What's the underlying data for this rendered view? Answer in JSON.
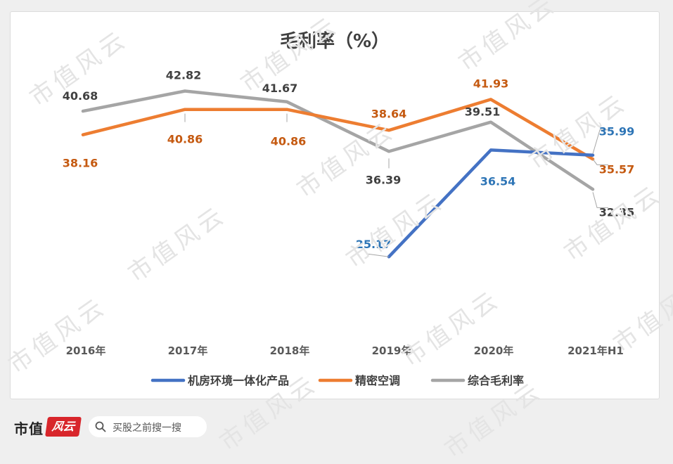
{
  "watermark_text": "市值风云",
  "footer": {
    "brand_main": "市值",
    "brand_badge": "风云",
    "search_placeholder": "买股之前搜一搜"
  },
  "colors": {
    "series_blue": "#4472c4",
    "series_orange": "#ed7d31",
    "series_gray": "#a5a5a5",
    "label_blue": "#2e75b6",
    "label_orange": "#c55a11",
    "label_gray": "#404040"
  },
  "chart_data": {
    "type": "line",
    "title": "毛利率（%）",
    "xlabel": "",
    "ylabel": "",
    "ylim": [
      18,
      46
    ],
    "grid": false,
    "legend_position": "bottom",
    "categories": [
      "2016年",
      "2017年",
      "2018年",
      "2019年",
      "2020年",
      "2021年H1"
    ],
    "series": [
      {
        "name": "机房环境一体化产品",
        "values": [
          null,
          null,
          null,
          25.17,
          36.54,
          35.99
        ],
        "labels": [
          "",
          "",
          "",
          "25.17",
          "36.54",
          "35.99"
        ]
      },
      {
        "name": "精密空调",
        "values": [
          38.16,
          40.86,
          40.86,
          38.64,
          41.93,
          35.57
        ],
        "labels": [
          "38.16",
          "40.86",
          "40.86",
          "38.64",
          "41.93",
          "35.57"
        ]
      },
      {
        "name": "综合毛利率",
        "values": [
          40.68,
          42.82,
          41.67,
          36.39,
          39.51,
          32.35
        ],
        "labels": [
          "40.68",
          "42.82",
          "41.67",
          "36.39",
          "39.51",
          "32.35"
        ]
      }
    ]
  }
}
